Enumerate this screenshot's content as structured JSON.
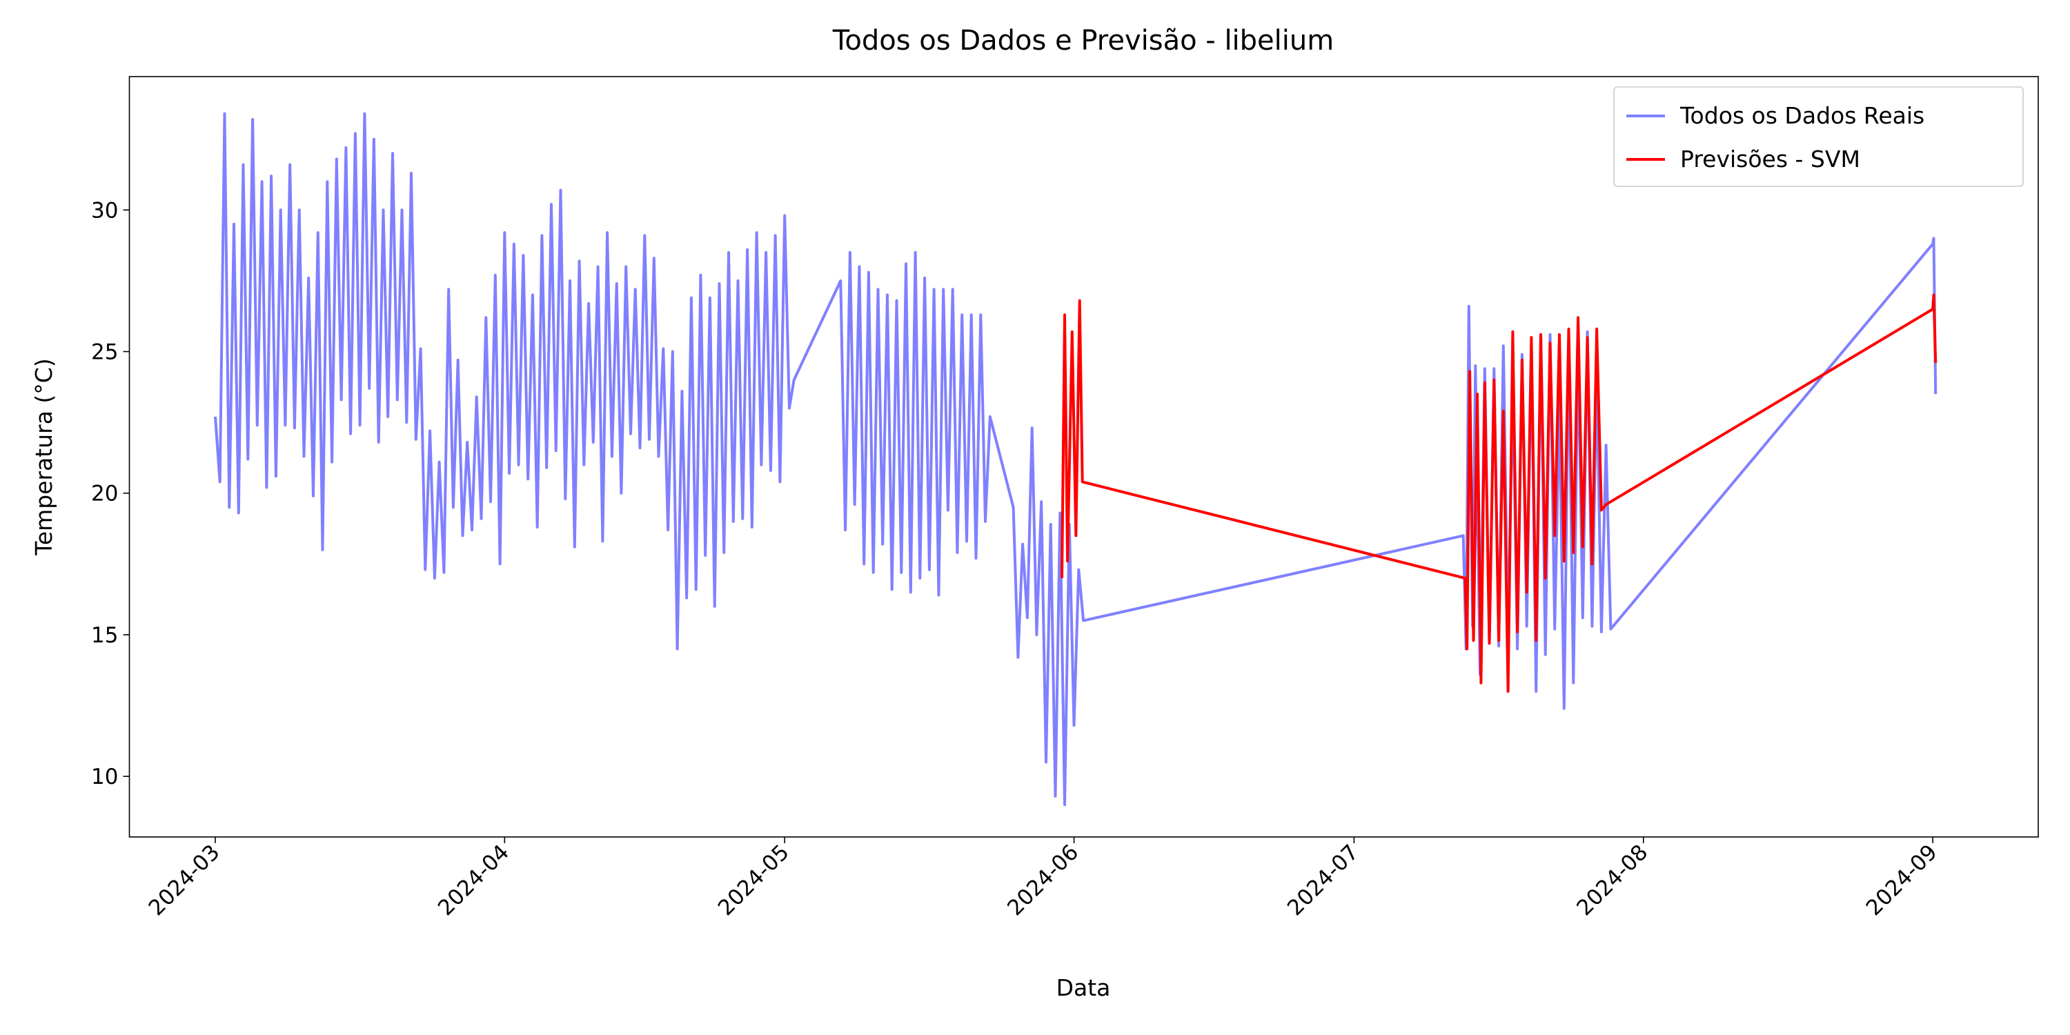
{
  "chart_data": {
    "type": "line",
    "title": "Todos os Dados e Previsão - libelium",
    "xlabel": "Data",
    "ylabel": "Temperatura (°C)",
    "xlim": [
      -9.2,
      195.3
    ],
    "ylim": [
      7.86,
      34.71
    ],
    "xticks": [
      {
        "value": 0,
        "label": "2024-03"
      },
      {
        "value": 31,
        "label": "2024-04"
      },
      {
        "value": 61,
        "label": "2024-05"
      },
      {
        "value": 92,
        "label": "2024-06"
      },
      {
        "value": 122,
        "label": "2024-07"
      },
      {
        "value": 153,
        "label": "2024-08"
      },
      {
        "value": 184,
        "label": "2024-09"
      }
    ],
    "yticks": [
      10,
      15,
      20,
      25,
      30
    ],
    "grid": false,
    "legend": "upper right",
    "series": [
      {
        "name": "Todos os Dados Reais",
        "color": "#8080ff",
        "x": [
          0,
          0.5,
          1,
          1.5,
          2,
          2.5,
          3,
          3.5,
          4,
          4.5,
          5,
          5.5,
          6,
          6.5,
          7,
          7.5,
          8,
          8.5,
          9,
          9.5,
          10,
          10.5,
          11,
          11.5,
          12,
          12.5,
          13,
          13.5,
          14,
          14.5,
          15,
          15.5,
          16,
          16.5,
          17,
          17.5,
          18,
          18.5,
          19,
          19.5,
          20,
          20.5,
          21,
          21.5,
          22,
          22.5,
          23,
          23.5,
          24,
          24.5,
          25,
          25.5,
          26,
          26.5,
          27,
          27.5,
          28,
          28.5,
          29,
          29.5,
          30,
          30.5,
          31,
          31.5,
          32,
          32.5,
          33,
          33.5,
          34,
          34.5,
          35,
          35.5,
          36,
          36.5,
          37,
          37.5,
          38,
          38.5,
          39,
          39.5,
          40,
          40.5,
          41,
          41.5,
          42,
          42.5,
          43,
          43.5,
          44,
          44.5,
          45,
          45.5,
          46,
          46.5,
          47,
          47.5,
          48,
          48.5,
          49,
          49.5,
          50,
          50.5,
          51,
          51.5,
          52,
          52.5,
          53,
          53.5,
          54,
          54.5,
          55,
          55.5,
          56,
          56.5,
          57,
          57.5,
          58,
          58.5,
          59,
          59.5,
          60,
          60.5,
          61,
          61.5,
          62,
          67,
          67.5,
          68,
          68.5,
          69,
          69.5,
          70,
          70.5,
          71,
          71.5,
          72,
          72.5,
          73,
          73.5,
          74,
          74.5,
          75,
          75.5,
          76,
          76.5,
          77,
          77.5,
          78,
          78.5,
          79,
          79.5,
          80,
          80.5,
          81,
          81.5,
          82,
          82.5,
          83,
          85.5,
          86,
          86.5,
          87,
          87.5,
          88,
          88.5,
          89,
          89.5,
          90,
          90.5,
          91,
          91.5,
          92,
          92.5,
          93,
          133.7,
          134,
          134.3,
          134.7,
          135,
          135.5,
          136,
          136.5,
          137,
          137.5,
          138,
          138.5,
          139,
          139.5,
          140,
          140.5,
          141,
          141.5,
          142,
          142.5,
          143,
          143.5,
          144,
          144.5,
          145,
          145.5,
          146,
          146.5,
          147,
          147.5,
          148,
          148.5,
          149,
          149.5,
          184,
          184.1,
          184.3
        ],
        "values": [
          22.7,
          20.4,
          33.4,
          19.5,
          29.5,
          19.3,
          31.6,
          21.2,
          33.2,
          22.4,
          31.0,
          20.2,
          31.2,
          20.6,
          30.0,
          22.4,
          31.6,
          22.3,
          30.0,
          21.3,
          27.6,
          19.9,
          29.2,
          18.0,
          31.0,
          21.1,
          31.8,
          23.3,
          32.2,
          22.1,
          32.7,
          22.4,
          33.4,
          23.7,
          32.5,
          21.8,
          30.0,
          22.7,
          32.0,
          23.3,
          30.0,
          22.5,
          31.3,
          21.9,
          25.1,
          17.3,
          22.2,
          17.0,
          21.1,
          17.2,
          27.2,
          19.5,
          24.7,
          18.5,
          21.8,
          18.7,
          23.4,
          19.1,
          26.2,
          19.7,
          27.7,
          17.5,
          29.2,
          20.7,
          28.8,
          21.0,
          28.4,
          20.5,
          27.0,
          18.8,
          29.1,
          20.9,
          30.2,
          21.5,
          30.7,
          19.8,
          27.5,
          18.1,
          28.2,
          21.0,
          26.7,
          21.8,
          28.0,
          18.3,
          29.2,
          21.3,
          27.4,
          20.0,
          28.0,
          22.1,
          27.2,
          21.6,
          29.1,
          21.9,
          28.3,
          21.3,
          25.1,
          18.7,
          25.0,
          14.5,
          23.6,
          16.3,
          26.9,
          16.6,
          27.7,
          17.8,
          26.9,
          16.0,
          27.4,
          17.9,
          28.5,
          19.0,
          27.5,
          19.1,
          28.6,
          18.8,
          29.2,
          21.0,
          28.5,
          20.8,
          29.1,
          20.4,
          29.8,
          23.0,
          24.0,
          27.5,
          18.7,
          28.5,
          19.6,
          28.0,
          17.5,
          27.8,
          17.2,
          27.2,
          18.2,
          27.0,
          16.6,
          26.8,
          17.2,
          28.1,
          16.5,
          28.5,
          17.0,
          27.6,
          17.3,
          27.2,
          16.4,
          27.2,
          19.4,
          27.2,
          17.9,
          26.3,
          18.3,
          26.3,
          17.7,
          26.3,
          19.0,
          22.7,
          19.5,
          14.2,
          18.2,
          15.6,
          22.3,
          15.0,
          19.7,
          10.5,
          18.9,
          9.3,
          19.3,
          9.0,
          18.9,
          11.8,
          17.3,
          15.5,
          18.5,
          14.5,
          26.6,
          15.3,
          24.5,
          13.6,
          24.4,
          14.7,
          24.4,
          14.6,
          25.2,
          14.8,
          23.8,
          14.5,
          24.9,
          15.3,
          25.1,
          13.0,
          25.6,
          14.3,
          25.6,
          15.2,
          23.3,
          12.4,
          25.3,
          13.3,
          25.2,
          15.6,
          25.7,
          15.3,
          24.2,
          15.1,
          21.7,
          15.2,
          28.8,
          29.0,
          23.5
        ]
      },
      {
        "name": "Previsões - SVM",
        "color": "#ff0000",
        "x": [
          90.7,
          91,
          91.3,
          91.8,
          92.2,
          92.6,
          92.9,
          133.9,
          134.1,
          134.4,
          134.8,
          135.2,
          135.6,
          136,
          136.5,
          137,
          137.5,
          138,
          138.5,
          139,
          139.5,
          140,
          140.5,
          141,
          141.5,
          142,
          142.5,
          143,
          143.5,
          144,
          144.5,
          145,
          145.5,
          146,
          146.5,
          147,
          147.5,
          148,
          148.5,
          149,
          184,
          184.1,
          184.3
        ],
        "values": [
          17.0,
          26.3,
          17.6,
          25.7,
          18.5,
          26.8,
          20.4,
          17.0,
          14.5,
          24.3,
          14.8,
          23.5,
          13.3,
          23.9,
          14.7,
          24.0,
          14.8,
          22.9,
          13.0,
          25.7,
          15.1,
          24.7,
          16.5,
          25.5,
          14.8,
          25.6,
          17.0,
          25.3,
          18.5,
          25.6,
          17.6,
          25.8,
          17.9,
          26.2,
          18.1,
          25.5,
          17.5,
          25.8,
          19.4,
          19.6,
          26.5,
          27.0,
          24.6
        ]
      }
    ]
  }
}
